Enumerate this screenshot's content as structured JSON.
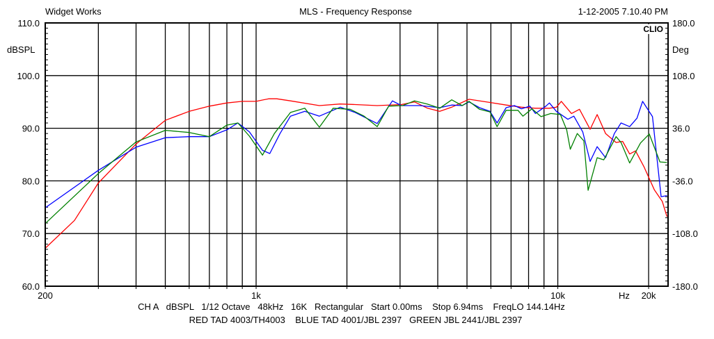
{
  "header": {
    "company": "Widget Works",
    "title": "MLS - Frequency Response",
    "timestamp": "1-12-2005 7.10.40 PM",
    "brand": "CLIO"
  },
  "footer": {
    "settings": "CH A   dBSPL   1/12 Octave   48kHz   16K   Rectangular   Start 0.00ms    Stop 6.94ms    FreqLO 144.14Hz",
    "legend": "RED TAD 4003/TH4003    BLUE TAD 4001/JBL 2397   GREEN JBL 2441/JBL 2397"
  },
  "chart_data": {
    "type": "line",
    "title": "MLS - Frequency Response",
    "xlabel": "Hz",
    "ylabel": "dBSPL",
    "y2label": "Deg",
    "xscale": "log",
    "xlim": [
      200,
      23200
    ],
    "ylim": [
      60,
      110
    ],
    "y2lim": [
      -180,
      180
    ],
    "grid": true,
    "x_ticks": [
      {
        "value": 200,
        "label": "200"
      },
      {
        "value": 1000,
        "label": "1k"
      },
      {
        "value": 10000,
        "label": "10k"
      },
      {
        "value": 20000,
        "label": "20k"
      }
    ],
    "x_unit_label": "Hz",
    "x_gridlines": [
      300,
      400,
      500,
      600,
      700,
      800,
      900,
      1000,
      2000,
      3000,
      4000,
      5000,
      6000,
      7000,
      8000,
      9000,
      10000,
      20000
    ],
    "y_ticks": [
      {
        "value": 110,
        "label": "110.0"
      },
      {
        "value": 100,
        "label": "100.0"
      },
      {
        "value": 90,
        "label": "90.0"
      },
      {
        "value": 80,
        "label": "80.0"
      },
      {
        "value": 70,
        "label": "70.0"
      },
      {
        "value": 60,
        "label": "60.0"
      }
    ],
    "y2_ticks": [
      {
        "value": 110,
        "label": "180.0"
      },
      {
        "value": 100,
        "label": "108.0"
      },
      {
        "value": 90,
        "label": "36.0"
      },
      {
        "value": 80,
        "label": "-36.0"
      },
      {
        "value": 70,
        "label": "-108.0"
      },
      {
        "value": 60,
        "label": "-180.0"
      }
    ],
    "series": [
      {
        "name": "RED TAD 4003/TH4003",
        "color": "#ff0000",
        "points": [
          [
            200,
            67.2
          ],
          [
            250,
            72.5
          ],
          [
            300,
            79.6
          ],
          [
            400,
            87.0
          ],
          [
            500,
            91.5
          ],
          [
            600,
            93.2
          ],
          [
            700,
            94.2
          ],
          [
            800,
            94.8
          ],
          [
            900,
            95.1
          ],
          [
            1000,
            95.1
          ],
          [
            1100,
            95.6
          ],
          [
            1170,
            95.6
          ],
          [
            1300,
            95.2
          ],
          [
            1620,
            94.3
          ],
          [
            1900,
            94.6
          ],
          [
            2130,
            94.5
          ],
          [
            2520,
            94.3
          ],
          [
            3030,
            94.5
          ],
          [
            3350,
            95.0
          ],
          [
            3700,
            93.8
          ],
          [
            4060,
            93.2
          ],
          [
            4450,
            94.0
          ],
          [
            5080,
            95.5
          ],
          [
            5960,
            94.9
          ],
          [
            6740,
            94.4
          ],
          [
            7580,
            94.0
          ],
          [
            8430,
            93.8
          ],
          [
            9380,
            93.8
          ],
          [
            9890,
            94.0
          ],
          [
            10270,
            95.1
          ],
          [
            11100,
            92.8
          ],
          [
            11800,
            93.6
          ],
          [
            12800,
            89.8
          ],
          [
            13500,
            92.6
          ],
          [
            14400,
            89.0
          ],
          [
            15600,
            87.3
          ],
          [
            16400,
            87.5
          ],
          [
            17300,
            85.1
          ],
          [
            18100,
            85.7
          ],
          [
            19300,
            82.7
          ],
          [
            20900,
            78.3
          ],
          [
            22200,
            76.1
          ],
          [
            23000,
            73.2
          ]
        ]
      },
      {
        "name": "BLUE TAD 4001/JBL 2397",
        "color": "#0000ff",
        "points": [
          [
            200,
            74.9
          ],
          [
            300,
            82.0
          ],
          [
            400,
            86.4
          ],
          [
            500,
            88.2
          ],
          [
            600,
            88.4
          ],
          [
            700,
            88.4
          ],
          [
            800,
            89.7
          ],
          [
            870,
            91.0
          ],
          [
            950,
            89.3
          ],
          [
            1050,
            85.8
          ],
          [
            1110,
            85.2
          ],
          [
            1200,
            89.0
          ],
          [
            1300,
            92.3
          ],
          [
            1450,
            93.2
          ],
          [
            1620,
            92.3
          ],
          [
            1900,
            94.0
          ],
          [
            2130,
            93.0
          ],
          [
            2520,
            90.9
          ],
          [
            2830,
            95.2
          ],
          [
            3030,
            94.3
          ],
          [
            3500,
            94.3
          ],
          [
            4060,
            93.9
          ],
          [
            4450,
            94.4
          ],
          [
            4820,
            94.3
          ],
          [
            5080,
            95.0
          ],
          [
            5500,
            93.9
          ],
          [
            5960,
            93.2
          ],
          [
            6290,
            91.0
          ],
          [
            6740,
            93.9
          ],
          [
            7180,
            94.3
          ],
          [
            7580,
            93.7
          ],
          [
            8080,
            94.2
          ],
          [
            8430,
            92.8
          ],
          [
            9130,
            94.2
          ],
          [
            9380,
            94.8
          ],
          [
            9890,
            93.2
          ],
          [
            10800,
            91.7
          ],
          [
            11300,
            92.3
          ],
          [
            12100,
            89.3
          ],
          [
            12800,
            83.7
          ],
          [
            13500,
            86.5
          ],
          [
            14400,
            84.4
          ],
          [
            15400,
            89.0
          ],
          [
            16200,
            91.0
          ],
          [
            17300,
            90.3
          ],
          [
            18300,
            91.9
          ],
          [
            19100,
            95.1
          ],
          [
            20600,
            92.2
          ],
          [
            22000,
            77.0
          ],
          [
            23000,
            77.2
          ]
        ]
      },
      {
        "name": "GREEN JBL 2441/JBL 2397",
        "color": "#008000",
        "points": [
          [
            200,
            71.9
          ],
          [
            300,
            81.4
          ],
          [
            400,
            87.4
          ],
          [
            500,
            89.6
          ],
          [
            600,
            89.2
          ],
          [
            700,
            88.4
          ],
          [
            800,
            90.6
          ],
          [
            870,
            91.0
          ],
          [
            950,
            88.5
          ],
          [
            1050,
            84.9
          ],
          [
            1150,
            89.0
          ],
          [
            1300,
            93.0
          ],
          [
            1450,
            93.8
          ],
          [
            1620,
            90.2
          ],
          [
            1800,
            93.8
          ],
          [
            2050,
            93.6
          ],
          [
            2280,
            92.3
          ],
          [
            2520,
            90.3
          ],
          [
            2750,
            94.2
          ],
          [
            3060,
            94.3
          ],
          [
            3350,
            95.2
          ],
          [
            3690,
            94.6
          ],
          [
            4060,
            93.8
          ],
          [
            4450,
            95.4
          ],
          [
            4820,
            94.3
          ],
          [
            5080,
            95.1
          ],
          [
            5500,
            93.6
          ],
          [
            5960,
            93.1
          ],
          [
            6290,
            90.3
          ],
          [
            6740,
            93.4
          ],
          [
            7380,
            93.4
          ],
          [
            7660,
            92.3
          ],
          [
            8210,
            93.7
          ],
          [
            8800,
            92.2
          ],
          [
            9480,
            92.8
          ],
          [
            10200,
            92.6
          ],
          [
            10700,
            89.7
          ],
          [
            11000,
            86.0
          ],
          [
            11600,
            89.0
          ],
          [
            12200,
            87.6
          ],
          [
            12600,
            78.2
          ],
          [
            13500,
            84.4
          ],
          [
            14200,
            84.0
          ],
          [
            15600,
            88.4
          ],
          [
            16200,
            87.3
          ],
          [
            17300,
            83.4
          ],
          [
            18800,
            87.2
          ],
          [
            20100,
            88.9
          ],
          [
            21800,
            83.6
          ],
          [
            23000,
            83.5
          ]
        ]
      }
    ]
  }
}
